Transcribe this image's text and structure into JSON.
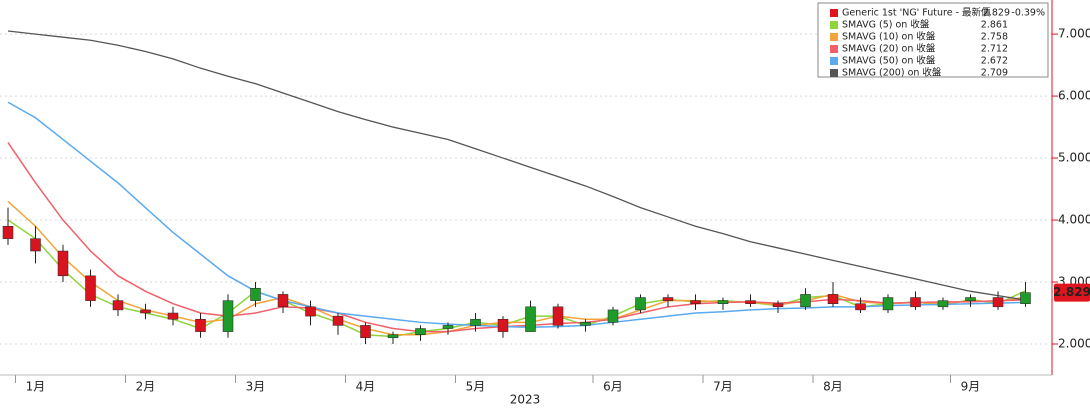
{
  "chart_data": {
    "type": "candlestick",
    "x_label": "2023",
    "categories": [
      null,
      "1月",
      null,
      null,
      null,
      "2月",
      null,
      null,
      null,
      "3月",
      null,
      null,
      null,
      "4月",
      null,
      null,
      null,
      "5月",
      null,
      null,
      null,
      null,
      "6月",
      null,
      null,
      null,
      "7月",
      null,
      null,
      null,
      "8月",
      null,
      null,
      null,
      null,
      "9月",
      null,
      null
    ],
    "candles": {
      "name": "Generic 1st 'NG' Future - 最新價",
      "color": "#e0141e",
      "legend_value": 2.829,
      "change": "-0.39%",
      "up_color": "#1f9b2a",
      "down_color": "#d9141e",
      "open": [
        3.9,
        3.7,
        3.5,
        3.1,
        2.7,
        2.55,
        2.5,
        2.4,
        2.2,
        2.7,
        2.8,
        2.6,
        2.45,
        2.3,
        2.1,
        2.15,
        2.25,
        2.3,
        2.4,
        2.2,
        2.6,
        2.3,
        2.35,
        2.55,
        2.75,
        2.7,
        2.65,
        2.7,
        2.65,
        2.6,
        2.8,
        2.65,
        2.55,
        2.75,
        2.6,
        2.7,
        2.75,
        2.65
      ],
      "high": [
        4.2,
        3.9,
        3.6,
        3.2,
        2.8,
        2.65,
        2.6,
        2.5,
        2.8,
        3.0,
        2.85,
        2.7,
        2.5,
        2.35,
        2.2,
        2.3,
        2.35,
        2.5,
        2.45,
        2.7,
        2.65,
        2.4,
        2.6,
        2.8,
        2.8,
        2.8,
        2.75,
        2.8,
        2.7,
        2.9,
        3.0,
        2.75,
        2.8,
        2.85,
        2.75,
        2.8,
        2.85,
        3.0
      ],
      "low": [
        3.6,
        3.3,
        3.0,
        2.6,
        2.45,
        2.4,
        2.3,
        2.1,
        2.1,
        2.6,
        2.5,
        2.3,
        2.15,
        2.0,
        2.0,
        2.05,
        2.15,
        2.2,
        2.1,
        2.2,
        2.25,
        2.2,
        2.3,
        2.5,
        2.6,
        2.55,
        2.55,
        2.6,
        2.5,
        2.55,
        2.6,
        2.5,
        2.5,
        2.55,
        2.55,
        2.6,
        2.55,
        2.6
      ],
      "close": [
        3.7,
        3.5,
        3.1,
        2.7,
        2.55,
        2.5,
        2.4,
        2.2,
        2.7,
        2.9,
        2.6,
        2.45,
        2.3,
        2.1,
        2.15,
        2.25,
        2.3,
        2.4,
        2.2,
        2.6,
        2.3,
        2.35,
        2.55,
        2.75,
        2.7,
        2.65,
        2.7,
        2.65,
        2.6,
        2.8,
        2.65,
        2.55,
        2.75,
        2.6,
        2.7,
        2.75,
        2.6,
        2.829
      ]
    },
    "series": [
      {
        "name": "SMAVG (5)  on 收盤",
        "color": "#8ed43c",
        "legend_value": 2.861,
        "values": [
          4.0,
          3.7,
          3.2,
          2.8,
          2.6,
          2.5,
          2.4,
          2.25,
          2.5,
          2.85,
          2.7,
          2.5,
          2.35,
          2.15,
          2.12,
          2.2,
          2.25,
          2.35,
          2.3,
          2.45,
          2.45,
          2.3,
          2.45,
          2.65,
          2.72,
          2.68,
          2.7,
          2.67,
          2.62,
          2.75,
          2.78,
          2.6,
          2.65,
          2.68,
          2.62,
          2.72,
          2.65,
          2.861
        ]
      },
      {
        "name": "SMAVG (10)  on 收盤",
        "color": "#f2a43a",
        "legend_value": 2.758,
        "values": [
          4.3,
          3.9,
          3.4,
          3.0,
          2.7,
          2.55,
          2.45,
          2.35,
          2.4,
          2.65,
          2.75,
          2.6,
          2.4,
          2.25,
          2.15,
          2.15,
          2.2,
          2.3,
          2.35,
          2.35,
          2.45,
          2.4,
          2.4,
          2.55,
          2.7,
          2.7,
          2.68,
          2.68,
          2.63,
          2.7,
          2.8,
          2.68,
          2.65,
          2.67,
          2.65,
          2.7,
          2.68,
          2.758
        ]
      },
      {
        "name": "SMAVG (20)  on 收盤",
        "color": "#f0606a",
        "legend_value": 2.712,
        "values": [
          5.25,
          4.6,
          4.0,
          3.5,
          3.1,
          2.85,
          2.65,
          2.5,
          2.45,
          2.5,
          2.6,
          2.58,
          2.5,
          2.35,
          2.25,
          2.2,
          2.2,
          2.25,
          2.28,
          2.3,
          2.33,
          2.35,
          2.4,
          2.5,
          2.6,
          2.65,
          2.67,
          2.68,
          2.66,
          2.68,
          2.72,
          2.7,
          2.66,
          2.67,
          2.68,
          2.68,
          2.7,
          2.712
        ]
      },
      {
        "name": "SMAVG (50)  on 收盤",
        "color": "#5aaaf0",
        "legend_value": 2.672,
        "values": [
          5.9,
          5.65,
          5.3,
          4.95,
          4.6,
          4.2,
          3.8,
          3.45,
          3.1,
          2.85,
          2.7,
          2.6,
          2.5,
          2.45,
          2.4,
          2.35,
          2.32,
          2.3,
          2.28,
          2.27,
          2.28,
          2.3,
          2.35,
          2.4,
          2.45,
          2.5,
          2.52,
          2.55,
          2.57,
          2.58,
          2.6,
          2.6,
          2.62,
          2.63,
          2.64,
          2.65,
          2.66,
          2.672
        ]
      },
      {
        "name": "SMAVG (200)  on 收盤",
        "color": "#555555",
        "legend_value": 2.709,
        "values": [
          7.05,
          7.0,
          6.95,
          6.9,
          6.82,
          6.72,
          6.6,
          6.45,
          6.32,
          6.2,
          6.05,
          5.9,
          5.75,
          5.62,
          5.5,
          5.4,
          5.3,
          5.15,
          5.0,
          4.85,
          4.7,
          4.55,
          4.38,
          4.2,
          4.05,
          3.9,
          3.78,
          3.65,
          3.55,
          3.45,
          3.35,
          3.25,
          3.15,
          3.05,
          2.95,
          2.85,
          2.78,
          2.709
        ]
      }
    ],
    "ylim": [
      1.5,
      7.55
    ],
    "yticks": [
      {
        "value": 2,
        "label": "2.000"
      },
      {
        "value": 3,
        "label": "3.000"
      },
      {
        "value": 4,
        "label": "4.000"
      },
      {
        "value": 5,
        "label": "5.000"
      },
      {
        "value": 6,
        "label": "6.000"
      },
      {
        "value": 7,
        "label": "7.000"
      }
    ],
    "grid": true
  }
}
